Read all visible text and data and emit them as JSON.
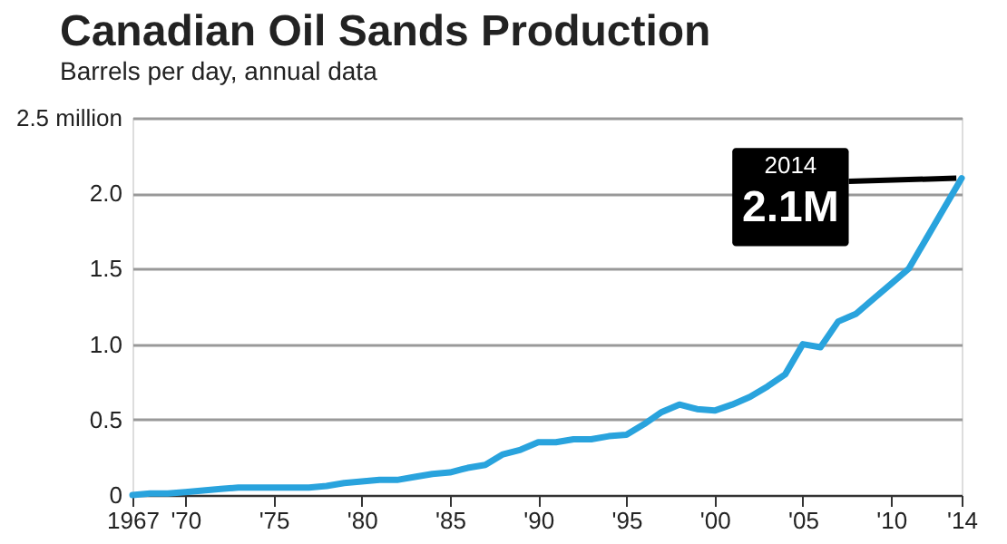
{
  "chart_data": {
    "type": "line",
    "title": "Canadian Oil Sands Production",
    "subtitle": "Barrels per day, annual data",
    "x": [
      1967,
      1968,
      1969,
      1970,
      1971,
      1972,
      1973,
      1974,
      1975,
      1976,
      1977,
      1978,
      1979,
      1980,
      1981,
      1982,
      1983,
      1984,
      1985,
      1986,
      1987,
      1988,
      1989,
      1990,
      1991,
      1992,
      1993,
      1994,
      1995,
      1996,
      1997,
      1998,
      1999,
      2000,
      2001,
      2002,
      2003,
      2004,
      2005,
      2006,
      2007,
      2008,
      2009,
      2010,
      2011,
      2012,
      2013,
      2014
    ],
    "series": [
      {
        "color": "#29a3dd",
        "values": [
          0.0,
          0.01,
          0.01,
          0.02,
          0.03,
          0.04,
          0.05,
          0.05,
          0.05,
          0.05,
          0.05,
          0.06,
          0.08,
          0.09,
          0.1,
          0.1,
          0.12,
          0.14,
          0.15,
          0.18,
          0.2,
          0.27,
          0.3,
          0.35,
          0.35,
          0.37,
          0.37,
          0.39,
          0.4,
          0.47,
          0.55,
          0.6,
          0.57,
          0.56,
          0.6,
          0.65,
          0.72,
          0.8,
          1.0,
          0.98,
          1.15,
          1.2,
          1.3,
          1.4,
          1.5,
          1.7,
          1.9,
          2.1
        ]
      }
    ],
    "xlim": [
      1967,
      2014
    ],
    "xticks": [
      1967,
      {
        "value": 1970,
        "label": "'70"
      },
      {
        "value": 1975,
        "label": "'75"
      },
      {
        "value": 1980,
        "label": "'80"
      },
      {
        "value": 1985,
        "label": "'85"
      },
      {
        "value": 1990,
        "label": "'90"
      },
      {
        "value": 1995,
        "label": "'95"
      },
      {
        "value": 2000,
        "label": "'00"
      },
      {
        "value": 2005,
        "label": "'05"
      },
      {
        "value": 2010,
        "label": "'10"
      },
      {
        "value": 2014,
        "label": "'14"
      }
    ],
    "ylim": [
      0,
      2.5
    ],
    "yticks": [
      0,
      {
        "value": 0.5,
        "label": "0.5"
      },
      {
        "value": 1,
        "label": "1.0"
      },
      {
        "value": 1.5,
        "label": "1.5"
      },
      {
        "value": 2,
        "label": "2.0"
      },
      {
        "value": 2.5,
        "label": "2.5 million"
      }
    ],
    "grid": "y",
    "marker": "none",
    "line_style": "solid",
    "annotations": [
      "2014",
      {
        "text": "2.1M",
        "x": 2014,
        "y": 2.1
      }
    ]
  }
}
